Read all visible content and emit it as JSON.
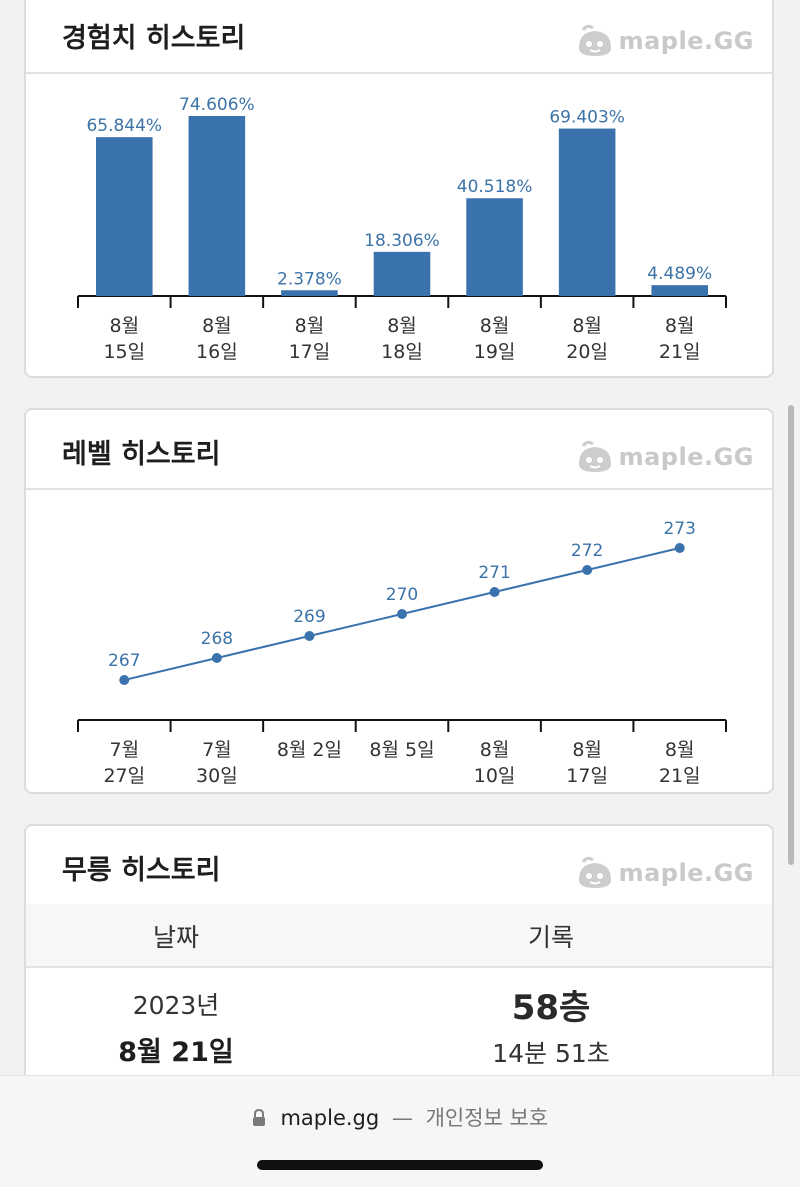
{
  "cards": {
    "exp": {
      "title": "경험치 히스토리",
      "logo": "maple.GG"
    },
    "level": {
      "title": "레벨 히스토리",
      "logo": "maple.GG"
    },
    "mureung": {
      "title": "무릉 히스토리",
      "logo": "maple.GG",
      "columns": [
        "날짜",
        "기록"
      ],
      "row": {
        "year": "2023년",
        "date": "8월 21일",
        "floor": "58층",
        "time": "14분 51초"
      }
    }
  },
  "chart_data": [
    {
      "type": "bar",
      "categories": [
        [
          "8월",
          "15일"
        ],
        [
          "8월",
          "16일"
        ],
        [
          "8월",
          "17일"
        ],
        [
          "8월",
          "18일"
        ],
        [
          "8월",
          "19일"
        ],
        [
          "8월",
          "20일"
        ],
        [
          "8월",
          "21일"
        ]
      ],
      "values": [
        65.844,
        74.606,
        2.378,
        18.306,
        40.518,
        69.403,
        4.489
      ],
      "value_labels": [
        "65.844%",
        "74.606%",
        "2.378%",
        "18.306%",
        "40.518%",
        "69.403%",
        "4.489%"
      ],
      "color": "#3a72ad"
    },
    {
      "type": "line",
      "categories": [
        [
          "7월",
          "27일"
        ],
        [
          "7월",
          "30일"
        ],
        [
          "8월 2일"
        ],
        [
          "8월 5일"
        ],
        [
          "8월",
          "10일"
        ],
        [
          "8월",
          "17일"
        ],
        [
          "8월",
          "21일"
        ]
      ],
      "values": [
        267,
        268,
        269,
        270,
        271,
        272,
        273
      ],
      "value_labels": [
        "267",
        "268",
        "269",
        "270",
        "271",
        "272",
        "273"
      ],
      "color": "#3a72ad"
    }
  ],
  "footer": {
    "url": "maple.gg",
    "separator": "—",
    "privacy": "개인정보 보호"
  },
  "icons": {
    "lock": "lock-icon",
    "logo": "maple-mushroom-icon"
  }
}
